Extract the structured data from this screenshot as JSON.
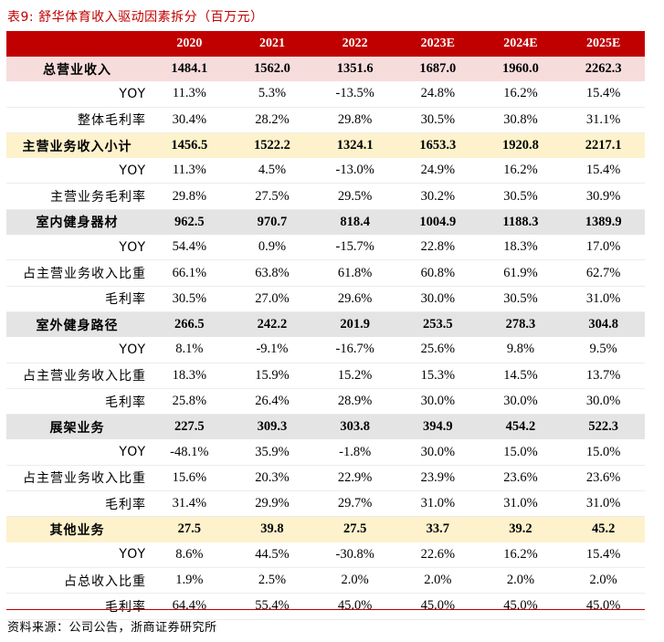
{
  "title": "表9:  舒华体育收入驱动因素拆分（百万元）",
  "header": [
    "",
    "2020",
    "2021",
    "2022",
    "2023E",
    "2024E",
    "2025E"
  ],
  "rows": [
    {
      "style": "main pink",
      "label": "总营业收入",
      "values": [
        "1484.1",
        "1562.0",
        "1351.6",
        "1687.0",
        "1960.0",
        "2262.3"
      ]
    },
    {
      "style": "sub",
      "label": "YOY",
      "values": [
        "11.3%",
        "5.3%",
        "-13.5%",
        "24.8%",
        "16.2%",
        "15.4%"
      ]
    },
    {
      "style": "sub",
      "label": "整体毛利率",
      "values": [
        "30.4%",
        "28.2%",
        "29.8%",
        "30.5%",
        "30.8%",
        "31.1%"
      ]
    },
    {
      "style": "main yellow",
      "label": "主营业务收入小计",
      "values": [
        "1456.5",
        "1522.2",
        "1324.1",
        "1653.3",
        "1920.8",
        "2217.1"
      ]
    },
    {
      "style": "sub",
      "label": "YOY",
      "values": [
        "11.3%",
        "4.5%",
        "-13.0%",
        "24.9%",
        "16.2%",
        "15.4%"
      ]
    },
    {
      "style": "sub",
      "label": "主营业务毛利率",
      "values": [
        "29.8%",
        "27.5%",
        "29.5%",
        "30.2%",
        "30.5%",
        "30.9%"
      ]
    },
    {
      "style": "main gray",
      "label": "室内健身器材",
      "values": [
        "962.5",
        "970.7",
        "818.4",
        "1004.9",
        "1188.3",
        "1389.9"
      ]
    },
    {
      "style": "sub",
      "label": "YOY",
      "values": [
        "54.4%",
        "0.9%",
        "-15.7%",
        "22.8%",
        "18.3%",
        "17.0%"
      ]
    },
    {
      "style": "sub",
      "label": "占主营业务收入比重",
      "values": [
        "66.1%",
        "63.8%",
        "61.8%",
        "60.8%",
        "61.9%",
        "62.7%"
      ]
    },
    {
      "style": "sub",
      "label": "毛利率",
      "values": [
        "30.5%",
        "27.0%",
        "29.6%",
        "30.0%",
        "30.5%",
        "31.0%"
      ]
    },
    {
      "style": "main gray",
      "label": "室外健身路径",
      "values": [
        "266.5",
        "242.2",
        "201.9",
        "253.5",
        "278.3",
        "304.8"
      ]
    },
    {
      "style": "sub",
      "label": "YOY",
      "values": [
        "8.1%",
        "-9.1%",
        "-16.7%",
        "25.6%",
        "9.8%",
        "9.5%"
      ]
    },
    {
      "style": "sub",
      "label": "占主营业务收入比重",
      "values": [
        "18.3%",
        "15.9%",
        "15.2%",
        "15.3%",
        "14.5%",
        "13.7%"
      ]
    },
    {
      "style": "sub",
      "label": "毛利率",
      "values": [
        "25.8%",
        "26.4%",
        "28.9%",
        "30.0%",
        "30.0%",
        "30.0%"
      ]
    },
    {
      "style": "main gray",
      "label": "展架业务",
      "values": [
        "227.5",
        "309.3",
        "303.8",
        "394.9",
        "454.2",
        "522.3"
      ]
    },
    {
      "style": "sub",
      "label": "YOY",
      "values": [
        "-48.1%",
        "35.9%",
        "-1.8%",
        "30.0%",
        "15.0%",
        "15.0%"
      ]
    },
    {
      "style": "sub",
      "label": "占主营业务收入比重",
      "values": [
        "15.6%",
        "20.3%",
        "22.9%",
        "23.9%",
        "23.6%",
        "23.6%"
      ]
    },
    {
      "style": "sub",
      "label": "毛利率",
      "values": [
        "31.4%",
        "29.9%",
        "29.7%",
        "31.0%",
        "31.0%",
        "31.0%"
      ]
    },
    {
      "style": "main yellow",
      "label": "其他业务",
      "values": [
        "27.5",
        "39.8",
        "27.5",
        "33.7",
        "39.2",
        "45.2"
      ]
    },
    {
      "style": "sub",
      "label": "YOY",
      "values": [
        "8.6%",
        "44.5%",
        "-30.8%",
        "22.6%",
        "16.2%",
        "15.4%"
      ]
    },
    {
      "style": "sub",
      "label": "占总收入比重",
      "values": [
        "1.9%",
        "2.5%",
        "2.0%",
        "2.0%",
        "2.0%",
        "2.0%"
      ]
    },
    {
      "style": "sub",
      "label": "毛利率",
      "values": [
        "64.4%",
        "55.4%",
        "45.0%",
        "45.0%",
        "45.0%",
        "45.0%"
      ]
    }
  ],
  "source": "资料来源：公司公告，浙商证券研究所",
  "colors": {
    "accent": "#c00000",
    "pink": "#f7dcdc",
    "yellow": "#fdf2cc",
    "gray": "#e4e4e4"
  }
}
